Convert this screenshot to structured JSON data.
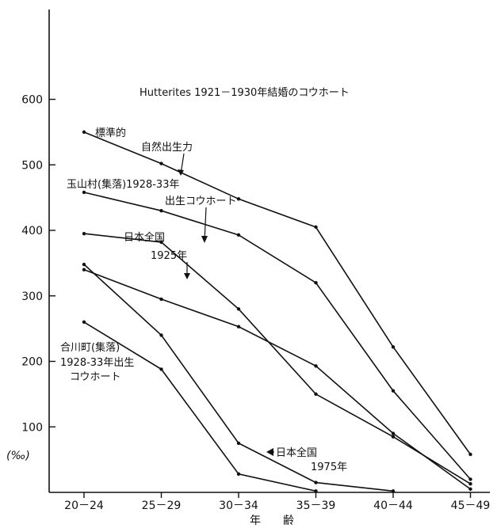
{
  "chart_data": {
    "type": "line",
    "categories": [
      "20－24",
      "25－29",
      "30－34",
      "35－39",
      "40－44",
      "45－49"
    ],
    "xlabel": "年　　齢",
    "ylabel": "(‰)",
    "ylim": [
      0,
      650
    ],
    "yticks": [
      100,
      200,
      300,
      400,
      500,
      600
    ],
    "grid": false,
    "series": [
      {
        "name": "Hutterites 1921－1930年結婚のコウホート",
        "values": [
          550,
          502,
          448,
          405,
          222,
          58
        ]
      },
      {
        "name": "標準的 自然出生力",
        "values": [
          458,
          430,
          393,
          320,
          155,
          20
        ]
      },
      {
        "name": "玉山村(集落)1928-33年 出生コウホート",
        "values": [
          395,
          382,
          280,
          150,
          85,
          13
        ]
      },
      {
        "name": "日本全国 1925年",
        "values": [
          340,
          295,
          253,
          193,
          90,
          5
        ]
      },
      {
        "name": "合川町(集落) 1928-33年出生 コウホート",
        "values": [
          260,
          188,
          28,
          2,
          null,
          null
        ]
      },
      {
        "name": "日本全国 1975年",
        "values": [
          348,
          240,
          75,
          15,
          2,
          null
        ]
      }
    ],
    "annotations": {
      "hutterites": "Hutterites 1921－1930年結婚のコウホート",
      "standard_1": "標準的",
      "standard_2": "自然出生力",
      "tamayama_1": "玉山村(集落)1928-33年",
      "tamayama_2": "出生コウホート",
      "japan1925_1": "日本全国",
      "japan1925_2": "1925年",
      "aikawa_1": "合川町(集落)",
      "aikawa_2": "1928-33年出生",
      "aikawa_3": "コウホート",
      "japan1975_1": "日本全国",
      "japan1975_2": "1975年"
    }
  }
}
